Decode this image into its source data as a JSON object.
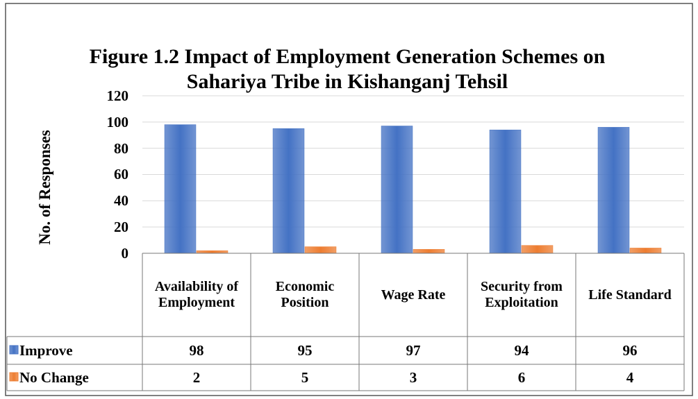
{
  "chart_data": {
    "type": "bar",
    "title": "Figure 1.2 Impact of Employment Generation Schemes on Sahariya Tribe in Kishanganj Tehsil",
    "y_label": "No. of Responses",
    "categories": [
      "Availability of Employment",
      "Economic Position",
      "Wage Rate",
      "Security from Exploitation",
      "Life Standard"
    ],
    "series": [
      {
        "name": "Improve",
        "color": "#4472c4",
        "values": [
          98,
          95,
          97,
          94,
          96
        ]
      },
      {
        "name": "No Change",
        "color": "#ed7d31",
        "values": [
          2,
          5,
          3,
          6,
          4
        ]
      }
    ],
    "ylim": [
      0,
      120
    ],
    "yticks": [
      0,
      20,
      40,
      60,
      80,
      100,
      120
    ],
    "grid": true
  }
}
